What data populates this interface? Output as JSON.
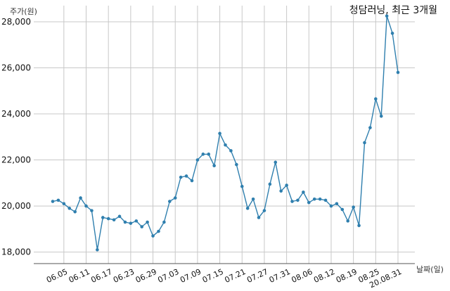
{
  "chart_data": {
    "type": "line",
    "title": "청담러닝, 최근 3개월",
    "ylabel": "주가(원)",
    "xlabel": "날짜(일)",
    "ylim": [
      17500,
      28700
    ],
    "yticks": [
      18000,
      20000,
      22000,
      24000,
      26000,
      28000
    ],
    "ytick_labels": [
      "18,000",
      "20,000",
      "22,000",
      "24,000",
      "26,000",
      "28,000"
    ],
    "grid": true,
    "colors": {
      "line": "#2f7fae",
      "grid": "#c8c8c8"
    },
    "x_tick_labels": [
      "06.05",
      "06.11",
      "06.17",
      "06.23",
      "06.29",
      "07.03",
      "07.09",
      "07.15",
      "07.21",
      "07.27",
      "07.31",
      "08.06",
      "08.12",
      "08.19",
      "08.25",
      "20.08.31"
    ],
    "x_tick_index": [
      2,
      6,
      10,
      14,
      18,
      22,
      26,
      30,
      34,
      38,
      42,
      46,
      50,
      54,
      58,
      62
    ],
    "values": [
      20200,
      20250,
      20100,
      19900,
      19750,
      20350,
      20000,
      19800,
      18100,
      19500,
      19450,
      19400,
      19550,
      19300,
      19250,
      19350,
      19100,
      19300,
      18700,
      18900,
      19300,
      20200,
      20350,
      21250,
      21300,
      21100,
      22000,
      22250,
      22250,
      21750,
      23150,
      22650,
      22400,
      21800,
      20850,
      19900,
      20300,
      19500,
      19800,
      20950,
      21900,
      20650,
      20900,
      20200,
      20250,
      20600,
      20150,
      20300,
      20300,
      20250,
      20000,
      20100,
      19850,
      19350,
      19950,
      19150,
      22750,
      23400,
      24650,
      23900,
      28250,
      27500,
      25800
    ]
  }
}
